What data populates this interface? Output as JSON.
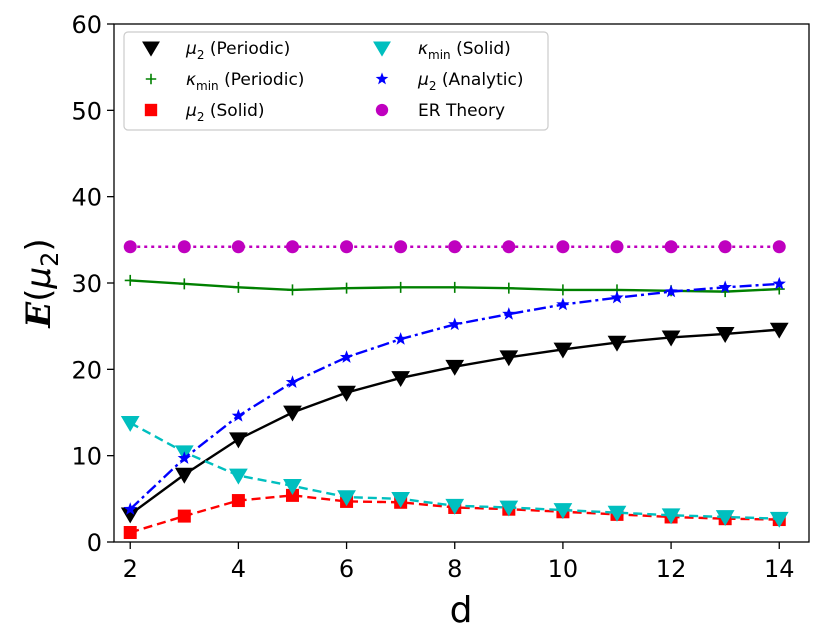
{
  "chart_data": {
    "type": "line",
    "title": "",
    "xlabel": "d",
    "ylabel": {
      "base": "E",
      "open": "(",
      "var": "μ",
      "sub": "2",
      "close": ")"
    },
    "xlim": [
      1.7,
      14.55
    ],
    "ylim": [
      0,
      60
    ],
    "xticks": [
      2,
      4,
      6,
      8,
      10,
      12,
      14
    ],
    "yticks": [
      0,
      10,
      20,
      30,
      40,
      50,
      60
    ],
    "grid": false,
    "legend_position": "top-left",
    "x": [
      2,
      3,
      4,
      5,
      6,
      7,
      8,
      9,
      10,
      11,
      12,
      13,
      14
    ],
    "series": [
      {
        "name": "μ2 (Periodic)",
        "label_var": "μ",
        "label_sub": "2",
        "label_rest": " (Periodic)",
        "color": "#000000",
        "marker": "triangle-down",
        "dash": "solid",
        "values": [
          3.2,
          7.8,
          11.9,
          15.0,
          17.3,
          19.0,
          20.3,
          21.4,
          22.3,
          23.1,
          23.7,
          24.1,
          24.6
        ]
      },
      {
        "name": "κmin (Periodic)",
        "label_var": "κ",
        "label_sub": "min",
        "label_rest": " (Periodic)",
        "color": "#008000",
        "marker": "plus",
        "dash": "solid",
        "values": [
          30.3,
          29.9,
          29.5,
          29.2,
          29.4,
          29.5,
          29.5,
          29.4,
          29.2,
          29.2,
          29.1,
          29.0,
          29.3
        ]
      },
      {
        "name": "μ2 (Solid)",
        "label_var": "μ",
        "label_sub": "2",
        "label_rest": " (Solid)",
        "color": "#ff0000",
        "marker": "square",
        "dash": "dashed",
        "values": [
          1.1,
          3.0,
          4.8,
          5.4,
          4.7,
          4.6,
          4.0,
          3.8,
          3.5,
          3.2,
          2.9,
          2.7,
          2.6
        ]
      },
      {
        "name": "κmin (Solid)",
        "label_var": "κ",
        "label_sub": "min",
        "label_rest": " (Solid)",
        "color": "#00bfbf",
        "marker": "triangle-down",
        "dash": "dashed",
        "values": [
          13.8,
          10.4,
          7.7,
          6.5,
          5.2,
          5.0,
          4.2,
          4.0,
          3.7,
          3.4,
          3.1,
          2.9,
          2.7
        ]
      },
      {
        "name": "μ2 (Analytic)",
        "label_var": "μ",
        "label_sub": "2",
        "label_rest": " (Analytic)",
        "color": "#0000ff",
        "marker": "star",
        "dash": "dashdot",
        "values": [
          3.8,
          9.7,
          14.6,
          18.5,
          21.4,
          23.5,
          25.2,
          26.4,
          27.5,
          28.3,
          29.0,
          29.5,
          29.9
        ]
      },
      {
        "name": "ER Theory",
        "label_var": "",
        "label_sub": "",
        "label_rest": "ER Theory",
        "color": "#bf00bf",
        "marker": "circle",
        "dash": "dotted",
        "values": [
          34.2,
          34.2,
          34.2,
          34.2,
          34.2,
          34.2,
          34.2,
          34.2,
          34.2,
          34.2,
          34.2,
          34.2,
          34.2
        ]
      }
    ]
  }
}
